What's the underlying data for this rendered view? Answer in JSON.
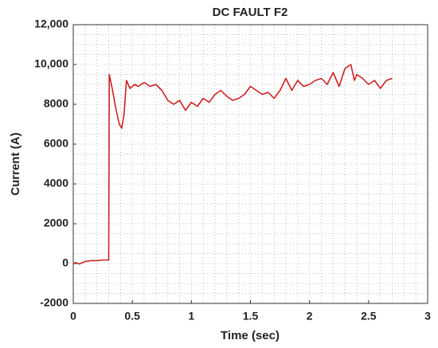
{
  "chart_data": {
    "type": "line",
    "title": "DC FAULT F2",
    "x_label": "Time (sec)",
    "y_label": "Current (A)",
    "x": [
      0,
      0.02,
      0.05,
      0.1,
      0.15,
      0.2,
      0.25,
      0.3,
      0.305,
      0.33,
      0.36,
      0.39,
      0.41,
      0.43,
      0.45,
      0.48,
      0.52,
      0.55,
      0.6,
      0.65,
      0.7,
      0.75,
      0.8,
      0.85,
      0.9,
      0.95,
      1.0,
      1.05,
      1.1,
      1.15,
      1.2,
      1.25,
      1.3,
      1.35,
      1.4,
      1.45,
      1.5,
      1.55,
      1.6,
      1.65,
      1.7,
      1.75,
      1.8,
      1.85,
      1.9,
      1.95,
      2.0,
      2.05,
      2.1,
      2.15,
      2.2,
      2.25,
      2.3,
      2.35,
      2.38,
      2.4,
      2.45,
      2.5,
      2.55,
      2.6,
      2.65,
      2.7
    ],
    "series": [
      {
        "name": "Current",
        "color": "#cc2222",
        "values": [
          0,
          50,
          -20,
          100,
          150,
          150,
          180,
          180,
          9500,
          8800,
          7800,
          7000,
          6800,
          7500,
          9200,
          8800,
          9000,
          8900,
          9100,
          8900,
          9000,
          8700,
          8200,
          8000,
          8200,
          7700,
          8100,
          7900,
          8300,
          8100,
          8500,
          8700,
          8400,
          8200,
          8300,
          8500,
          8900,
          8700,
          8500,
          8600,
          8300,
          8700,
          9300,
          8700,
          9200,
          8900,
          9000,
          9200,
          9300,
          9000,
          9600,
          8900,
          9800,
          10000,
          9200,
          9500,
          9300,
          9000,
          9200,
          8800,
          9200,
          9300
        ]
      }
    ],
    "xlim": [
      0,
      3
    ],
    "xticks": [
      0,
      0.5,
      1,
      1.5,
      2,
      2.5,
      3
    ],
    "ylim": [
      -2000,
      12000
    ],
    "yticks": [
      -2000,
      0,
      2000,
      4000,
      6000,
      8000,
      {
        "value": 10000,
        "label": "10,000"
      },
      {
        "value": 12000,
        "label": "12,000"
      }
    ],
    "grid": true
  }
}
